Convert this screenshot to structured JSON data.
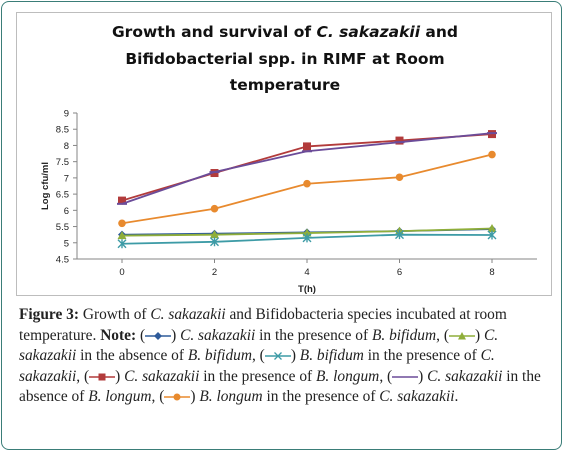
{
  "chart_data": {
    "type": "line",
    "title_lines": [
      [
        {
          "text": "Growth and survival of ",
          "italic": false
        },
        {
          "text": "C. sakazakii",
          "italic": true
        },
        {
          "text": " and",
          "italic": false
        }
      ],
      [
        {
          "text": "Bifidobacterial  spp. in RIMF at Room",
          "italic": false
        }
      ],
      [
        {
          "text": "temperature",
          "italic": false
        }
      ]
    ],
    "xlabel": "T(h)",
    "ylabel": "Log cfu/ml",
    "x": [
      0,
      2,
      4,
      6,
      8
    ],
    "x_ticks": [
      "0",
      "2",
      "4",
      "6",
      "8"
    ],
    "ylim": [
      4.5,
      9
    ],
    "y_ticks": [
      "4.5",
      "5",
      "5.5",
      "6",
      "6.5",
      "7",
      "7.5",
      "8",
      "8.5",
      "9"
    ],
    "grid": false,
    "series": [
      {
        "color": "#2e5b9a",
        "marker": "diamond",
        "values": [
          5.25,
          5.28,
          5.32,
          5.36,
          5.42
        ]
      },
      {
        "color": "#8fae3a",
        "marker": "triangle",
        "values": [
          5.22,
          5.25,
          5.3,
          5.36,
          5.44
        ]
      },
      {
        "color": "#3d9ba6",
        "marker": "cross",
        "values": [
          4.97,
          5.03,
          5.15,
          5.25,
          5.24
        ]
      },
      {
        "color": "#b23b3b",
        "marker": "square",
        "values": [
          6.3,
          7.15,
          7.97,
          8.15,
          8.35
        ]
      },
      {
        "color": "#6b4c99",
        "marker": "line",
        "values": [
          6.2,
          7.18,
          7.82,
          8.1,
          8.38
        ]
      },
      {
        "color": "#e88a2e",
        "marker": "circle",
        "values": [
          5.6,
          6.05,
          6.82,
          7.02,
          7.72
        ]
      }
    ]
  },
  "caption": {
    "label": "Figure 3:",
    "text1": " Growth of ",
    "species1": "C. sakazakii",
    "text2": " and Bifidobacteria species incubated at room temperature. ",
    "note_label": "Note:",
    "items": [
      {
        "paren_open": " (",
        "paren_close": ") ",
        "subject": "C. sakazakii",
        "text": " in the presence of ",
        "object": "B. bifidum",
        "sep": ", "
      },
      {
        "paren_open": "(",
        "paren_close": ") ",
        "subject": "C. sakazakii",
        "text": " in the absence of ",
        "object": "B. bifidum",
        "sep": ", "
      },
      {
        "paren_open": "(",
        "paren_close": ") ",
        "subject": "B. bifidum",
        "text": " in the presence of ",
        "object": "C. sakazakii",
        "sep": ", "
      },
      {
        "paren_open": "(",
        "paren_close": ") ",
        "subject": "C. sakazakii",
        "text": " in the presence of ",
        "object": "B. longum",
        "sep": ", "
      },
      {
        "paren_open": "(",
        "paren_close": ") ",
        "subject": "C. sakazakii",
        "text": " in the absence of ",
        "object": "B. longum",
        "sep": ", "
      },
      {
        "paren_open": "(",
        "paren_close": ") ",
        "subject": "B. longum",
        "text": " in the presence of ",
        "object": "C. sakazakii",
        "sep": "."
      }
    ]
  }
}
